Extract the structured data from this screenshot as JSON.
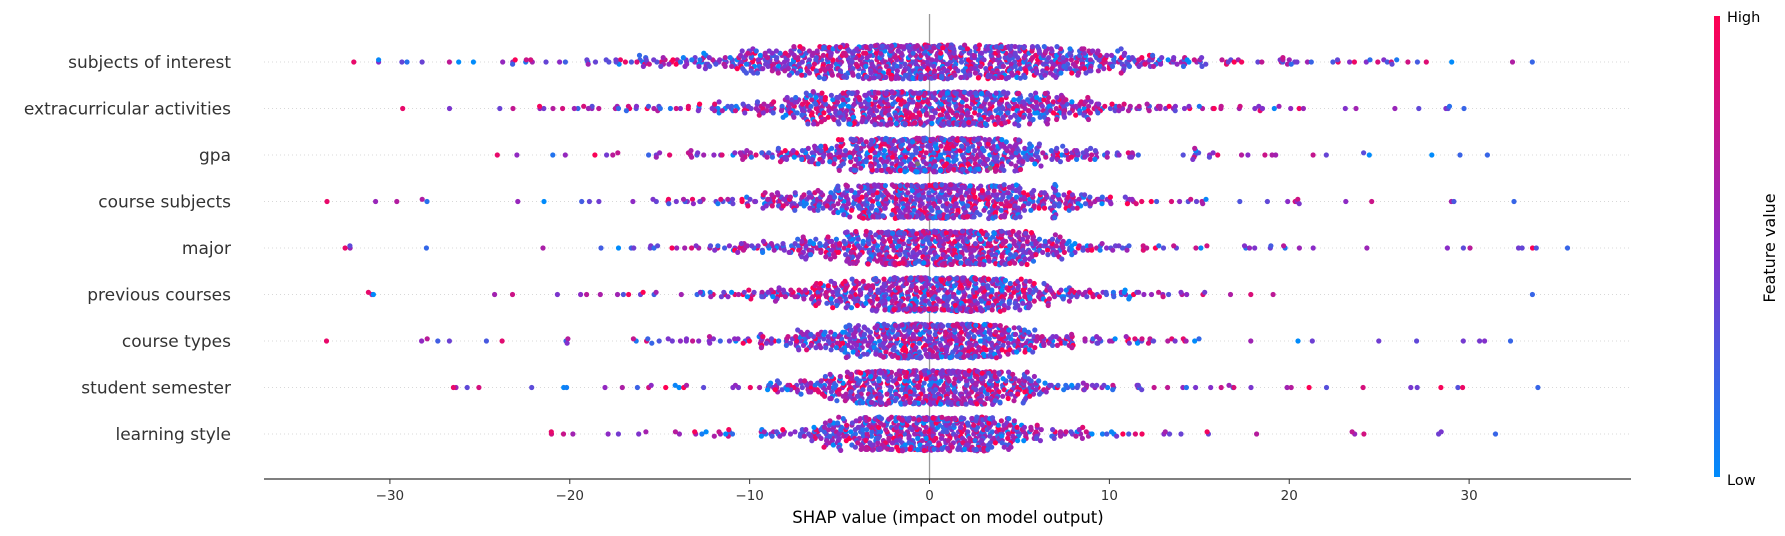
{
  "chart_data": {
    "type": "scatter",
    "subtype": "shap-beeswarm",
    "title": "",
    "xlabel": "SHAP value (impact on model output)",
    "ylabel": "",
    "xlim": [
      -37,
      39
    ],
    "xticks": [
      {
        "value": -30,
        "label": "−30"
      },
      {
        "value": -20,
        "label": "−20"
      },
      {
        "value": -10,
        "label": "−10"
      },
      {
        "value": 0,
        "label": "0"
      },
      {
        "value": 10,
        "label": "10"
      },
      {
        "value": 20,
        "label": "20"
      },
      {
        "value": 30,
        "label": "30"
      }
    ],
    "grid": false,
    "zero_line": true,
    "colorbar": {
      "title": "Feature value",
      "high_label": "High",
      "low_label": "Low",
      "high_color": "#ff0052",
      "mid_color": "#8a2bc8",
      "low_color": "#008bfb",
      "missing_color": "#777777"
    },
    "features": [
      {
        "name": "subjects of interest",
        "min": -32,
        "max": 33.5,
        "spread": 14.5,
        "core": 15,
        "count": 1100
      },
      {
        "name": "extracurricular activities",
        "min": -29.3,
        "max": 29.7,
        "spread": 12,
        "core": 0,
        "count": 900
      },
      {
        "name": "gpa",
        "min": -24,
        "max": 31,
        "spread": 10,
        "core": 0,
        "count": 750
      },
      {
        "name": "course subjects",
        "min": -33.5,
        "max": 32.5,
        "spread": 10,
        "core": 0,
        "count": 800
      },
      {
        "name": "major",
        "min": -32.5,
        "max": 35.5,
        "spread": 10,
        "core": 0,
        "count": 800
      },
      {
        "name": "previous courses",
        "min": -31.2,
        "max": 33.5,
        "spread": 9,
        "core": 0,
        "count": 750
      },
      {
        "name": "course types",
        "min": -33.5,
        "max": 32.3,
        "spread": 9,
        "core": 0,
        "count": 750
      },
      {
        "name": "student semester",
        "min": -26.5,
        "max": 33.8,
        "spread": 8.5,
        "core": 0,
        "count": 700
      },
      {
        "name": "learning style",
        "min": -21,
        "max": 31.5,
        "spread": 8,
        "core": 0,
        "count": 650
      }
    ]
  }
}
